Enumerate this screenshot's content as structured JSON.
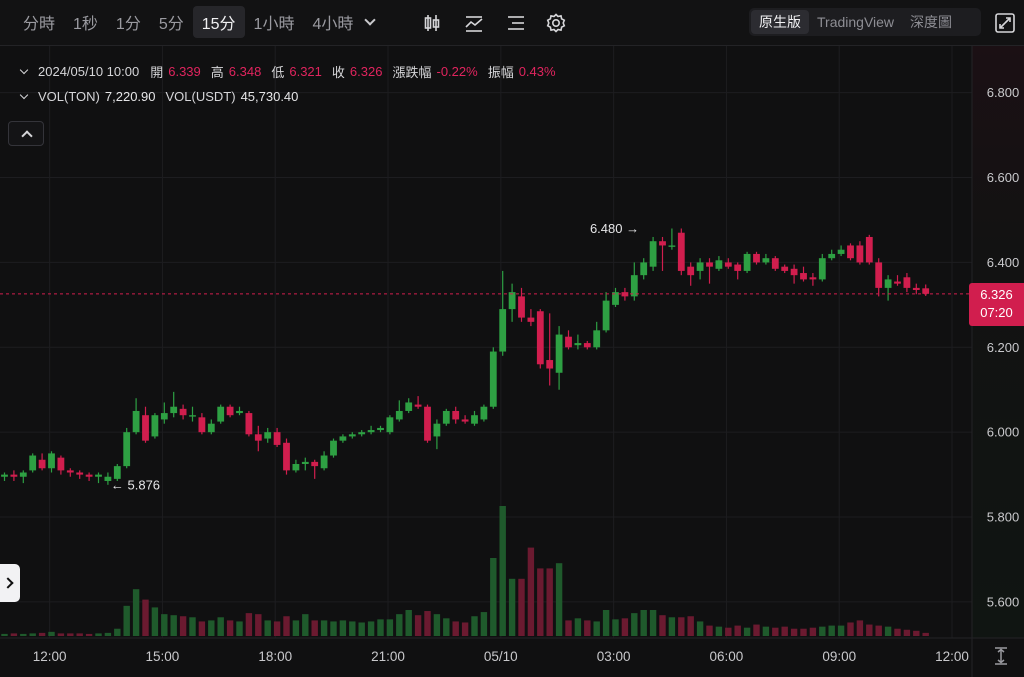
{
  "toolbar": {
    "intervals": [
      "分時",
      "1秒",
      "1分",
      "5分",
      "15分",
      "1小時",
      "4小時"
    ],
    "active_interval": "15分",
    "tools": [
      "candle-type-icon",
      "indicator-icon",
      "layout-icon",
      "settings-icon"
    ],
    "view_modes": [
      "原生版",
      "TradingView",
      "深度圖"
    ],
    "active_view": "原生版",
    "fullscreen_icon": "expand-icon"
  },
  "legend": {
    "datetime": "2024/05/10 10:00",
    "open_label": "開",
    "open": "6.339",
    "high_label": "高",
    "high": "6.348",
    "low_label": "低",
    "low": "6.321",
    "close_label": "收",
    "close": "6.326",
    "change_label": "漲跌幅",
    "change": "-0.22%",
    "amplitude_label": "振幅",
    "amplitude": "0.43%",
    "vol_base_label": "VOL(TON)",
    "vol_base": "7,220.90",
    "vol_quote_label": "VOL(USDT)",
    "vol_quote": "45,730.40"
  },
  "price_tag": {
    "price": "6.326",
    "countdown": "07:20"
  },
  "annotations": {
    "high_marker": "6.480",
    "low_marker": "5.876"
  },
  "colors": {
    "up": "#2ea043",
    "down": "#d11e4e",
    "background": "#101011",
    "grid": "#1d1d20",
    "text": "#c9c9cc"
  },
  "chart_data": {
    "type": "candlestick",
    "interval": "15m",
    "y_ticks": [
      "5.600",
      "5.800",
      "6.000",
      "6.200",
      "6.400",
      "6.600",
      "6.800"
    ],
    "ylim": [
      5.515,
      6.91
    ],
    "x_ticks": [
      "12:00",
      "15:00",
      "18:00",
      "21:00",
      "05/10",
      "03:00",
      "06:00",
      "09:00",
      "12:00"
    ],
    "x_tick_index": [
      4.8,
      16.8,
      28.8,
      40.8,
      52.8,
      64.8,
      76.8,
      88.8,
      100.8
    ],
    "current_price": 6.326,
    "high_marker": {
      "value": 6.48,
      "index": 69
    },
    "low_marker": {
      "value": 5.876,
      "index": 11
    },
    "candles": [
      [
        5.895,
        5.9,
        5.885,
        5.905
      ],
      [
        5.9,
        5.895,
        5.885,
        5.91
      ],
      [
        5.895,
        5.905,
        5.88,
        5.91
      ],
      [
        5.91,
        5.945,
        5.905,
        5.95
      ],
      [
        5.935,
        5.915,
        5.91,
        5.95
      ],
      [
        5.915,
        5.95,
        5.905,
        5.955
      ],
      [
        5.94,
        5.91,
        5.9,
        5.945
      ],
      [
        5.91,
        5.905,
        5.895,
        5.915
      ],
      [
        5.905,
        5.9,
        5.89,
        5.91
      ],
      [
        5.9,
        5.895,
        5.885,
        5.905
      ],
      [
        5.895,
        5.9,
        5.88,
        5.905
      ],
      [
        5.885,
        5.895,
        5.876,
        5.905
      ],
      [
        5.89,
        5.92,
        5.885,
        5.925
      ],
      [
        5.92,
        6.0,
        5.915,
        6.01
      ],
      [
        6.0,
        6.05,
        5.995,
        6.08
      ],
      [
        6.04,
        5.98,
        5.975,
        6.06
      ],
      [
        5.99,
        6.04,
        5.985,
        6.045
      ],
      [
        6.03,
        6.045,
        6.02,
        6.07
      ],
      [
        6.045,
        6.06,
        6.035,
        6.095
      ],
      [
        6.055,
        6.04,
        6.03,
        6.065
      ],
      [
        6.04,
        6.04,
        6.025,
        6.06
      ],
      [
        6.035,
        6.0,
        5.995,
        6.045
      ],
      [
        6.0,
        6.02,
        5.995,
        6.03
      ],
      [
        6.025,
        6.06,
        6.02,
        6.065
      ],
      [
        6.06,
        6.04,
        6.035,
        6.065
      ],
      [
        6.045,
        6.05,
        6.04,
        6.06
      ],
      [
        6.045,
        5.995,
        5.99,
        6.05
      ],
      [
        5.995,
        5.98,
        5.955,
        6.015
      ],
      [
        5.985,
        6.0,
        5.975,
        6.01
      ],
      [
        6.0,
        5.97,
        5.965,
        6.01
      ],
      [
        5.975,
        5.91,
        5.9,
        5.985
      ],
      [
        5.91,
        5.925,
        5.905,
        5.935
      ],
      [
        5.925,
        5.93,
        5.91,
        5.94
      ],
      [
        5.93,
        5.92,
        5.89,
        5.935
      ],
      [
        5.915,
        5.945,
        5.91,
        5.955
      ],
      [
        5.945,
        5.98,
        5.94,
        5.985
      ],
      [
        5.98,
        5.99,
        5.975,
        5.995
      ],
      [
        5.99,
        5.995,
        5.985,
        6.0
      ],
      [
        5.995,
        6.0,
        5.99,
        6.005
      ],
      [
        6.0,
        6.005,
        5.995,
        6.015
      ],
      [
        6.005,
        6.01,
        6.0,
        6.015
      ],
      [
        6.0,
        6.035,
        5.995,
        6.04
      ],
      [
        6.03,
        6.05,
        6.025,
        6.075
      ],
      [
        6.05,
        6.07,
        6.045,
        6.08
      ],
      [
        6.065,
        6.06,
        6.055,
        6.085
      ],
      [
        6.06,
        5.98,
        5.975,
        6.065
      ],
      [
        5.99,
        6.02,
        5.96,
        6.03
      ],
      [
        6.02,
        6.05,
        6.015,
        6.055
      ],
      [
        6.05,
        6.03,
        6.02,
        6.06
      ],
      [
        6.03,
        6.025,
        6.02,
        6.04
      ],
      [
        6.02,
        6.04,
        6.015,
        6.05
      ],
      [
        6.03,
        6.06,
        6.025,
        6.065
      ],
      [
        6.06,
        6.19,
        6.055,
        6.2
      ],
      [
        6.19,
        6.29,
        6.18,
        6.38
      ],
      [
        6.29,
        6.33,
        6.26,
        6.35
      ],
      [
        6.32,
        6.27,
        6.26,
        6.34
      ],
      [
        6.27,
        6.26,
        6.25,
        6.29
      ],
      [
        6.285,
        6.16,
        6.15,
        6.29
      ],
      [
        6.17,
        6.15,
        6.11,
        6.28
      ],
      [
        6.14,
        6.23,
        6.1,
        6.25
      ],
      [
        6.225,
        6.2,
        6.195,
        6.24
      ],
      [
        6.205,
        6.21,
        6.195,
        6.23
      ],
      [
        6.21,
        6.2,
        6.195,
        6.215
      ],
      [
        6.2,
        6.24,
        6.195,
        6.26
      ],
      [
        6.24,
        6.31,
        6.235,
        6.33
      ],
      [
        6.3,
        6.33,
        6.295,
        6.34
      ],
      [
        6.33,
        6.32,
        6.31,
        6.34
      ],
      [
        6.32,
        6.37,
        6.31,
        6.4
      ],
      [
        6.37,
        6.4,
        6.36,
        6.41
      ],
      [
        6.39,
        6.45,
        6.38,
        6.46
      ],
      [
        6.45,
        6.44,
        6.38,
        6.46
      ],
      [
        6.44,
        6.44,
        6.43,
        6.48
      ],
      [
        6.47,
        6.38,
        6.37,
        6.48
      ],
      [
        6.39,
        6.37,
        6.345,
        6.4
      ],
      [
        6.38,
        6.4,
        6.36,
        6.41
      ],
      [
        6.4,
        6.39,
        6.35,
        6.41
      ],
      [
        6.385,
        6.405,
        6.38,
        6.415
      ],
      [
        6.4,
        6.39,
        6.385,
        6.41
      ],
      [
        6.395,
        6.38,
        6.36,
        6.4
      ],
      [
        6.38,
        6.42,
        6.375,
        6.425
      ],
      [
        6.42,
        6.4,
        6.395,
        6.425
      ],
      [
        6.4,
        6.41,
        6.395,
        6.42
      ],
      [
        6.41,
        6.385,
        6.38,
        6.415
      ],
      [
        6.39,
        6.38,
        6.375,
        6.395
      ],
      [
        6.385,
        6.37,
        6.35,
        6.395
      ],
      [
        6.375,
        6.36,
        6.355,
        6.39
      ],
      [
        6.365,
        6.36,
        6.345,
        6.375
      ],
      [
        6.36,
        6.41,
        6.355,
        6.42
      ],
      [
        6.41,
        6.42,
        6.405,
        6.43
      ],
      [
        6.42,
        6.43,
        6.415,
        6.44
      ],
      [
        6.44,
        6.41,
        6.405,
        6.445
      ],
      [
        6.44,
        6.4,
        6.395,
        6.45
      ],
      [
        6.46,
        6.4,
        6.395,
        6.465
      ],
      [
        6.4,
        6.34,
        6.32,
        6.41
      ],
      [
        6.34,
        6.36,
        6.31,
        6.37
      ],
      [
        6.355,
        6.35,
        6.345,
        6.37
      ],
      [
        6.365,
        6.34,
        6.33,
        6.375
      ],
      [
        6.34,
        6.335,
        6.325,
        6.35
      ],
      [
        6.339,
        6.326,
        6.321,
        6.348
      ]
    ],
    "volumes": [
      4,
      5,
      4,
      5,
      6,
      8,
      5,
      5,
      5,
      4,
      5,
      6,
      14,
      58,
      90,
      70,
      55,
      42,
      40,
      38,
      36,
      28,
      30,
      36,
      30,
      28,
      44,
      42,
      30,
      28,
      38,
      30,
      42,
      30,
      30,
      28,
      30,
      28,
      26,
      28,
      32,
      32,
      42,
      50,
      40,
      48,
      42,
      34,
      28,
      26,
      38,
      46,
      150,
      250,
      110,
      110,
      170,
      130,
      130,
      140,
      30,
      34,
      30,
      28,
      50,
      32,
      34,
      44,
      50,
      50,
      40,
      36,
      36,
      38,
      28,
      20,
      18,
      16,
      20,
      16,
      22,
      18,
      16,
      18,
      14,
      14,
      16,
      18,
      20,
      20,
      26,
      30,
      22,
      20,
      18,
      14,
      12,
      10,
      6
    ]
  }
}
